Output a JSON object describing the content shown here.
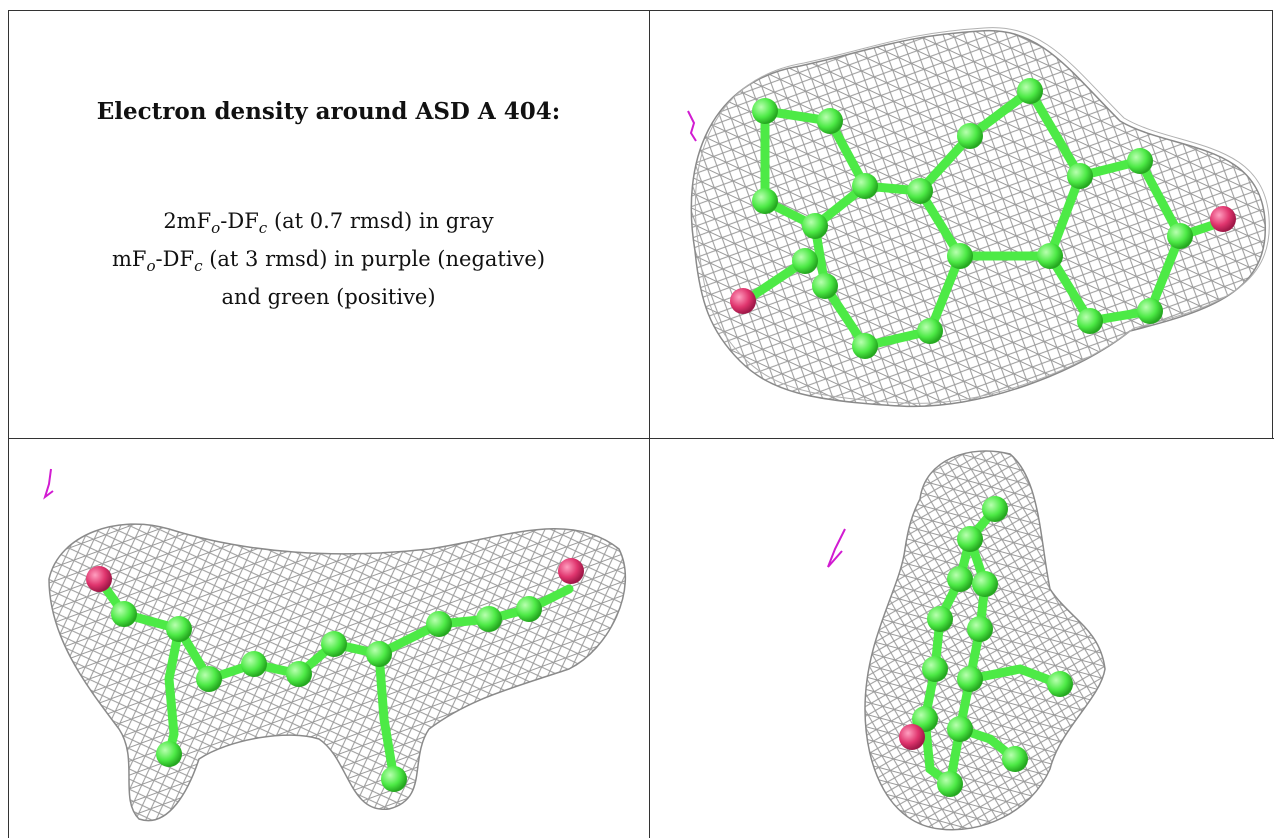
{
  "caption": {
    "title": "Electron density around ASD A 404:",
    "line1": {
      "a": "2mF",
      "b": "o",
      "c": "-DF",
      "d": "c",
      "e": " (at 0.7 rmsd) in gray"
    },
    "line2": {
      "a": "mF",
      "b": "o",
      "c": "-DF",
      "d": "c",
      "e": " (at 3 rmsd) in purple (negative)"
    },
    "line3": "and green (positive)"
  },
  "colors": {
    "mesh": "#9a9a9a",
    "carbon": "#4dea46",
    "oxygen": "#e0356e",
    "negative_density": "#d11bd1"
  },
  "panels": [
    {
      "view": "top",
      "icon": "molecule-view"
    },
    {
      "view": "side",
      "icon": "molecule-view"
    },
    {
      "view": "end",
      "icon": "molecule-view"
    }
  ]
}
